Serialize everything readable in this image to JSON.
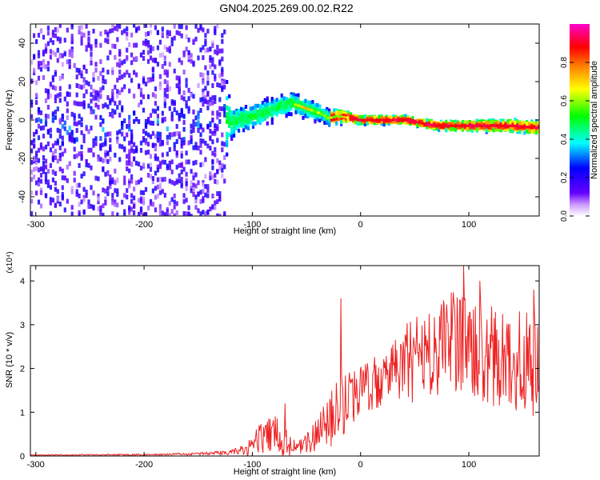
{
  "title": "GN04.2025.269.00.02.R22",
  "chart_data": [
    {
      "type": "heatmap",
      "name": "spectrogram",
      "xlabel": "Height of straight line (km)",
      "ylabel": "Frequency (Hz)",
      "xlim": [
        -305,
        165
      ],
      "ylim": [
        -50,
        50
      ],
      "xticks": [
        -300,
        -200,
        -100,
        0,
        100
      ],
      "yticks": [
        -40,
        -20,
        0,
        20,
        40
      ],
      "colorbar": {
        "label": "Normalized spectral amplitude",
        "range": [
          0,
          1
        ],
        "ticks": [
          "0.0",
          "0.2",
          "0.4",
          "0.6",
          "0.8"
        ],
        "tick_values": [
          0.0,
          0.2,
          0.4,
          0.6,
          0.8
        ],
        "colors": [
          "#ffffff",
          "#6600ff",
          "#0000ff",
          "#00ffff",
          "#00ff00",
          "#ffff00",
          "#ff8000",
          "#ff0000",
          "#ff00cc"
        ]
      },
      "ridge": {
        "x": [
          -300,
          -250,
          -200,
          -150,
          -120,
          -100,
          -80,
          -65,
          -55,
          -45,
          -35,
          -30,
          -20,
          -10,
          0,
          20,
          40,
          50,
          60,
          70,
          80,
          100,
          120,
          140,
          160,
          165
        ],
        "frequency": [
          -2,
          -3,
          -3,
          -2,
          -1,
          2,
          6,
          9,
          7,
          5,
          3,
          1,
          2,
          1,
          0,
          0,
          0,
          -1,
          -2,
          -3,
          -3,
          -3,
          -3,
          -3,
          -4,
          -4
        ]
      },
      "noise_extent": {
        "x": [
          -305,
          -250,
          -200,
          -150,
          -130,
          -120,
          -100,
          -50,
          -30,
          0,
          50,
          100,
          165
        ],
        "half_width": [
          50,
          50,
          50,
          50,
          50,
          12,
          10,
          8,
          6,
          3,
          3,
          4,
          5
        ]
      }
    },
    {
      "type": "line",
      "name": "snr",
      "xlabel": "Height of straight line (km)",
      "ylabel": "SNR (10 * v/v)",
      "y_multiplier": "(x10⁴)",
      "xlim": [
        -305,
        165
      ],
      "ylim": [
        0,
        4.35
      ],
      "xticks": [
        -300,
        -200,
        -100,
        0,
        100
      ],
      "yticks": [
        0,
        1,
        2,
        3,
        4
      ],
      "color": "#ee2222",
      "envelope": {
        "x": [
          -305,
          -200,
          -150,
          -120,
          -110,
          -100,
          -90,
          -80,
          -70,
          -60,
          -50,
          -40,
          -30,
          -20,
          -10,
          0,
          10,
          20,
          30,
          40,
          50,
          60,
          70,
          80,
          90,
          100,
          110,
          120,
          130,
          140,
          150,
          160,
          165
        ],
        "mean": [
          0.02,
          0.03,
          0.05,
          0.08,
          0.15,
          0.3,
          0.4,
          0.5,
          0.3,
          0.2,
          0.3,
          0.5,
          0.8,
          1.0,
          1.4,
          1.5,
          1.6,
          1.8,
          2.0,
          2.1,
          2.2,
          2.3,
          2.4,
          2.5,
          2.5,
          2.4,
          2.4,
          2.3,
          2.2,
          2.2,
          2.1,
          2.1,
          2.0
        ],
        "spread": [
          0.01,
          0.02,
          0.03,
          0.05,
          0.1,
          0.35,
          0.35,
          0.45,
          0.35,
          0.15,
          0.25,
          0.45,
          0.6,
          0.9,
          0.7,
          0.6,
          0.6,
          0.7,
          0.8,
          0.9,
          1.0,
          1.0,
          1.1,
          1.2,
          1.3,
          1.2,
          1.2,
          1.2,
          1.2,
          1.2,
          1.2,
          1.2,
          1.2
        ]
      },
      "peaks": [
        {
          "x": -70,
          "y": 1.2
        },
        {
          "x": -18,
          "y": 3.6
        },
        {
          "x": 95,
          "y": 4.35
        },
        {
          "x": 110,
          "y": 4.0
        },
        {
          "x": 160,
          "y": 3.8
        }
      ]
    }
  ]
}
